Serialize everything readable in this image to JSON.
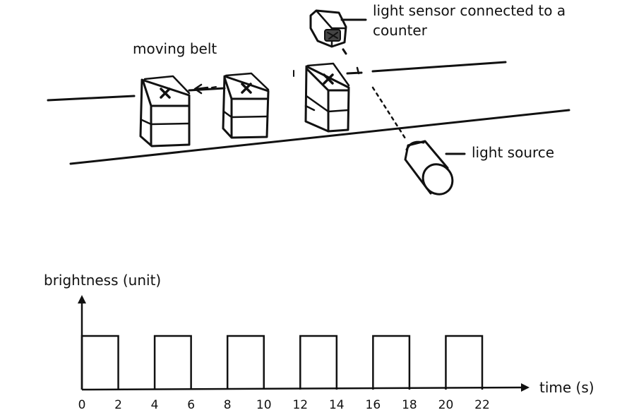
{
  "labels": {
    "moving_belt": "moving belt",
    "sensor_line1": "light sensor connected to a",
    "sensor_line2": "counter",
    "light_source": "light source"
  },
  "chart_data": {
    "type": "line",
    "title": "",
    "xlabel": "time (s)",
    "ylabel": "brightness (unit)",
    "xlim": [
      0,
      22
    ],
    "ylim": [
      0,
      1
    ],
    "x_ticks": [
      0,
      2,
      4,
      6,
      8,
      10,
      12,
      14,
      16,
      18,
      20,
      22
    ],
    "pulses": [
      {
        "start": 0,
        "end": 2,
        "level": 1
      },
      {
        "start": 4,
        "end": 6,
        "level": 1
      },
      {
        "start": 8,
        "end": 10,
        "level": 1
      },
      {
        "start": 12,
        "end": 14,
        "level": 1
      },
      {
        "start": 16,
        "end": 18,
        "level": 1
      },
      {
        "start": 20,
        "end": 22,
        "level": 1
      }
    ]
  }
}
